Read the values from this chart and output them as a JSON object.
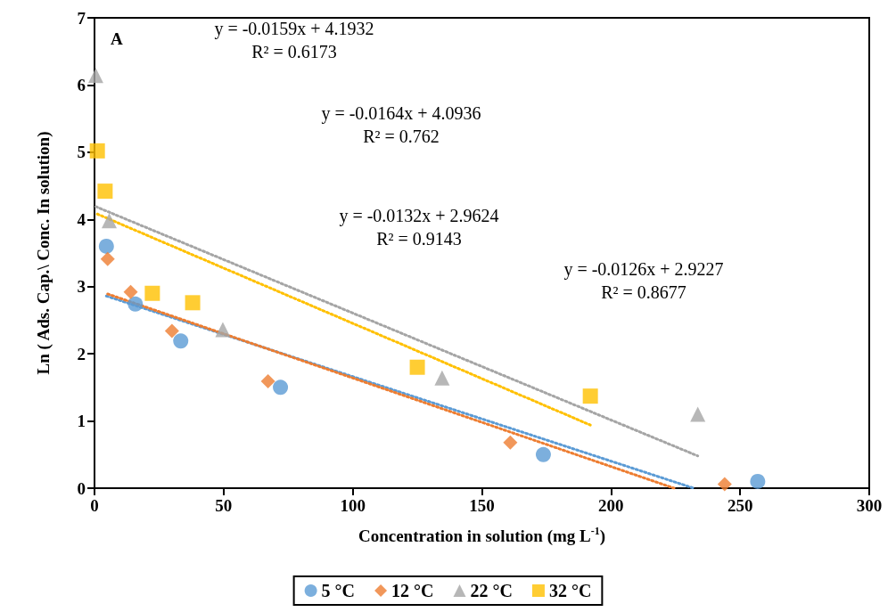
{
  "chart_data": {
    "type": "scatter",
    "xlabel": "Concentration in solution (mg L$^{-1}$)",
    "ylabel": "Ln ( Ads. Cap.\\ Conc. In solution)",
    "xlim": [
      0,
      300
    ],
    "xticks": [
      0,
      50,
      100,
      150,
      200,
      250,
      300
    ],
    "ylim": [
      0,
      7
    ],
    "yticks": [
      0,
      1,
      2,
      3,
      4,
      5,
      6,
      7
    ],
    "grid": false,
    "legend": "bottom",
    "series": [
      {
        "name": "5 °C",
        "color": "#5b9bd5",
        "marker": "circle",
        "x": [
          4.6,
          15.8,
          33.4,
          72,
          173.8,
          256.8
        ],
        "values": [
          3.6,
          2.74,
          2.19,
          1.5,
          0.5,
          0.1
        ]
      },
      {
        "name": "12 °C",
        "color": "#ed7d31",
        "marker": "diamond",
        "x": [
          5.1,
          14,
          30,
          67.2,
          161,
          244
        ],
        "values": [
          3.41,
          2.92,
          2.34,
          1.59,
          0.68,
          0.06
        ]
      },
      {
        "name": "22 °C",
        "color": "#a5a5a5",
        "marker": "triangle",
        "x": [
          0.5,
          5.7,
          49.7,
          134.6,
          233.6
        ],
        "values": [
          6.14,
          3.98,
          2.36,
          1.64,
          1.1
        ]
      },
      {
        "name": "32 °C",
        "color": "#ffc000",
        "marker": "square",
        "x": [
          1.1,
          4.1,
          22.4,
          38,
          125,
          192
        ],
        "values": [
          5.02,
          4.42,
          2.9,
          2.76,
          1.8,
          1.37
        ]
      },
      {
        "type": "line",
        "color": "#5b9bd5",
        "line_style": "dotted",
        "marker": "none",
        "x": [
          4.6,
          232
        ],
        "values": [
          2.86,
          0
        ]
      },
      {
        "type": "line",
        "color": "#ed7d31",
        "line_style": "dotted",
        "marker": "none",
        "x": [
          5.1,
          224.4
        ],
        "values": [
          2.89,
          0
        ]
      },
      {
        "type": "line",
        "color": "#a5a5a5",
        "line_style": "dotted",
        "marker": "none",
        "x": [
          0.5,
          233.6
        ],
        "values": [
          4.19,
          0.48
        ]
      },
      {
        "type": "line",
        "color": "#ffc000",
        "line_style": "dotted",
        "marker": "none",
        "x": [
          1.1,
          192
        ],
        "values": [
          4.08,
          0.94
        ]
      }
    ],
    "annotations": [
      "A",
      "y = -0.0159x + 4.1932\nR² = 0.6173",
      "y = -0.0164x + 4.0936\nR² = 0.762",
      "y = -0.0132x + 2.9624\nR² = 0.9143",
      "y = -0.0126x + 2.9227\nR² = 0.8677"
    ]
  }
}
